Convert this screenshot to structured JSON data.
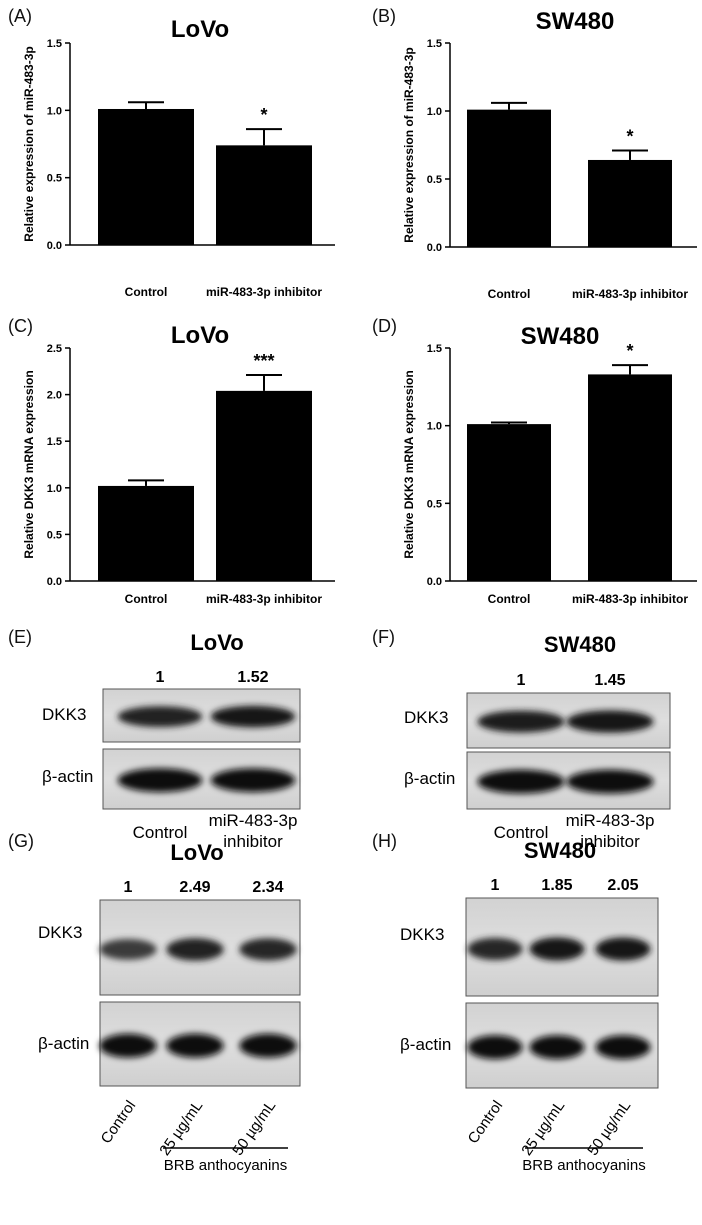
{
  "chart_data": [
    {
      "panel": "(A)",
      "type": "bar",
      "title": "LoVo",
      "ylabel": "Relative expression of miR-483-3p",
      "categories": [
        "Control",
        "miR-483-3p inhibitor"
      ],
      "values": [
        1.01,
        0.74
      ],
      "errors": [
        0.05,
        0.12
      ],
      "significance": [
        "",
        "*"
      ],
      "ylim": [
        0,
        1.5
      ],
      "yticks": [
        "0.0",
        "0.5",
        "1.0",
        "1.5"
      ]
    },
    {
      "panel": "(B)",
      "type": "bar",
      "title": "SW480",
      "ylabel": "Relative expression of miR-483-3p",
      "categories": [
        "Control",
        "miR-483-3p inhibitor"
      ],
      "values": [
        1.01,
        0.64
      ],
      "errors": [
        0.05,
        0.07
      ],
      "significance": [
        "",
        "*"
      ],
      "ylim": [
        0,
        1.5
      ],
      "yticks": [
        "0.0",
        "0.5",
        "1.0",
        "1.5"
      ]
    },
    {
      "panel": "(C)",
      "type": "bar",
      "title": "LoVo",
      "ylabel": "Relative DKK3 mRNA expression",
      "categories": [
        "Control",
        "miR-483-3p inhibitor"
      ],
      "values": [
        1.02,
        2.04
      ],
      "errors": [
        0.06,
        0.17
      ],
      "significance": [
        "",
        "***"
      ],
      "ylim": [
        0,
        2.5
      ],
      "yticks": [
        "0.0",
        "0.5",
        "1.0",
        "1.5",
        "2.0",
        "2.5"
      ]
    },
    {
      "panel": "(D)",
      "type": "bar",
      "title": "SW480",
      "ylabel": "Relative DKK3 mRNA expression",
      "categories": [
        "Control",
        "miR-483-3p inhibitor"
      ],
      "values": [
        1.01,
        1.33
      ],
      "errors": [
        0.01,
        0.06
      ],
      "significance": [
        "",
        "*"
      ],
      "ylim": [
        0,
        1.5
      ],
      "yticks": [
        "0.0",
        "0.5",
        "1.0",
        "1.5"
      ]
    }
  ],
  "blots": [
    {
      "panel": "(E)",
      "title": "LoVo",
      "quant": [
        "1",
        "1.52"
      ],
      "rows": [
        "DKK3",
        "β-actin"
      ],
      "lanes": [
        "Control",
        "miR-483-3p\ninhibitor"
      ],
      "dkk3_intensity": [
        0.8,
        0.9
      ],
      "actin_intensity": [
        1.0,
        1.0
      ]
    },
    {
      "panel": "(F)",
      "title": "SW480",
      "quant": [
        "1",
        "1.45"
      ],
      "rows": [
        "DKK3",
        "β-actin"
      ],
      "lanes": [
        "Control",
        "miR-483-3p\ninhibitor"
      ],
      "dkk3_intensity": [
        0.85,
        0.9
      ],
      "actin_intensity": [
        1.0,
        1.0
      ]
    },
    {
      "panel": "(G)",
      "title": "LoVo",
      "quant": [
        "1",
        "2.49",
        "2.34"
      ],
      "rows": [
        "DKK3",
        "β-actin"
      ],
      "lanes": [
        "Control",
        "25 µg/mL",
        "50 µg/mL"
      ],
      "group_label": "BRB anthocyanins",
      "dkk3_intensity": [
        0.55,
        0.8,
        0.75
      ],
      "actin_intensity": [
        1.0,
        1.0,
        1.0
      ]
    },
    {
      "panel": "(H)",
      "title": "SW480",
      "quant": [
        "1",
        "1.85",
        "2.05"
      ],
      "rows": [
        "DKK3",
        "β-actin"
      ],
      "lanes": [
        "Control",
        "25 µg/mL",
        "50 µg/mL"
      ],
      "group_label": "BRB anthocyanins",
      "dkk3_intensity": [
        0.75,
        0.9,
        0.9
      ],
      "actin_intensity": [
        1.0,
        1.0,
        1.0
      ]
    }
  ]
}
